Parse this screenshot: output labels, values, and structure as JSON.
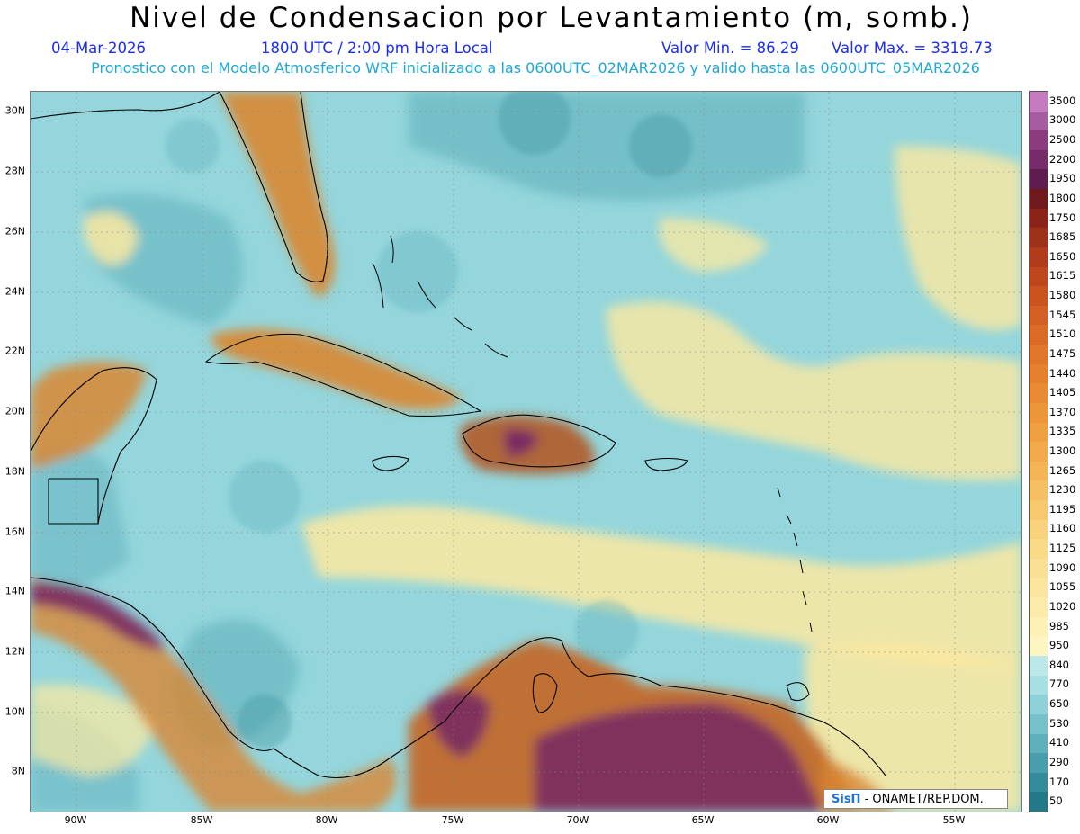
{
  "header": {
    "title": "Nivel de Condensacion por Levantamiento (m, somb.)",
    "date": "04-Mar-2026",
    "time": "1800 UTC / 2:00 pm Hora Local",
    "min_value": "Valor Min. = 86.29",
    "max_value": "Valor Max. = 3319.73",
    "model_info": "Pronostico con el Modelo Atmosferico WRF inicializado a las 0600UTC_02MAR2026 y valido hasta las  0600UTC_05MAR2026"
  },
  "map": {
    "lon_labels": [
      "90W",
      "85W",
      "80W",
      "75W",
      "70W",
      "65W",
      "60W",
      "55W"
    ],
    "lat_labels": [
      "30N",
      "28N",
      "26N",
      "24N",
      "22N",
      "20N",
      "18N",
      "16N",
      "14N",
      "12N",
      "10N",
      "8N"
    ],
    "field_colors": {
      "ocean_base": "#94d6dc",
      "ocean_dark": "#5fb0bb",
      "ocean_darker": "#3d8f9b",
      "yellow_band": "#fde9a0",
      "orange_land": "#d98732",
      "brown_land": "#8a4a24",
      "purple_max": "#7a2c62"
    }
  },
  "legend": {
    "levels": [
      "3500",
      "3000",
      "2500",
      "2200",
      "1950",
      "1800",
      "1750",
      "1685",
      "1650",
      "1615",
      "1580",
      "1545",
      "1510",
      "1475",
      "1440",
      "1405",
      "1370",
      "1335",
      "1300",
      "1265",
      "1230",
      "1195",
      "1160",
      "1125",
      "1090",
      "1055",
      "1020",
      "985",
      "950",
      "840",
      "770",
      "650",
      "530",
      "410",
      "290",
      "170",
      "50"
    ],
    "colors": [
      "#c67bc0",
      "#a75ba0",
      "#8b3c7f",
      "#762c68",
      "#5e1d4e",
      "#6e1a1c",
      "#8b2418",
      "#9e3119",
      "#b13c1b",
      "#bf471d",
      "#cb5320",
      "#d35f24",
      "#db6a26",
      "#e1752a",
      "#e5802e",
      "#e98b33",
      "#ec963a",
      "#efa141",
      "#f1ab4b",
      "#f3b556",
      "#f5bf63",
      "#f7c96f",
      "#f8d27c",
      "#f9da88",
      "#fae094",
      "#fbe6a0",
      "#fcecab",
      "#fdf1b6",
      "#fef5c2",
      "#bde8ea",
      "#a7dfe3",
      "#8fd1d8",
      "#77c1ca",
      "#5fb0bb",
      "#4a9eab",
      "#368b9a",
      "#247888"
    ]
  },
  "credit": {
    "brand": "SisΠ",
    "text": " - ONAMET/REP.DOM."
  }
}
